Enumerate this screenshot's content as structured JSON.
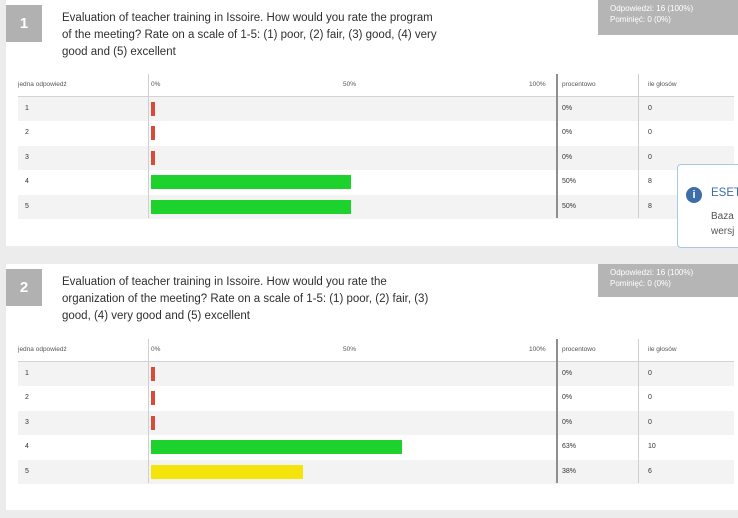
{
  "colors": {
    "red": "#d84a3a",
    "green": "#1ed22e",
    "yellow": "#f4e40c"
  },
  "questions": [
    {
      "number": "1",
      "text": "Evaluation of teacher training in Issoire. How would you rate the program of the meeting? Rate on a scale of 1-5: (1) poor, (2) fair, (3) good, (4) very good and (5) excellent",
      "stats": {
        "answers": "Odpowiedzi: 16 (100%)",
        "skipped": "Pominięć: 0 (0%)"
      },
      "headers": {
        "answer": "jedna odpowiedź",
        "p0": "0%",
        "p50": "50%",
        "p100": "100%",
        "percent": "procentowo",
        "votes": "ile głosów"
      },
      "rows": [
        {
          "label": "1",
          "fraction": 0,
          "percent": "0%",
          "votes": "0",
          "color": "red"
        },
        {
          "label": "2",
          "fraction": 0,
          "percent": "0%",
          "votes": "0",
          "color": "red"
        },
        {
          "label": "3",
          "fraction": 0,
          "percent": "0%",
          "votes": "0",
          "color": "red"
        },
        {
          "label": "4",
          "fraction": 0.5,
          "percent": "50%",
          "votes": "8",
          "color": "green"
        },
        {
          "label": "5",
          "fraction": 0.5,
          "percent": "50%",
          "votes": "8",
          "color": "green"
        }
      ]
    },
    {
      "number": "2",
      "text": "Evaluation of teacher training in Issoire. How would you rate the organization of the meeting? Rate on a scale of 1-5: (1) poor, (2) fair, (3) good, (4) very good and (5) excellent",
      "stats": {
        "answers": "Odpowiedzi: 16 (100%)",
        "skipped": "Pominięć: 0 (0%)"
      },
      "headers": {
        "answer": "jedna odpowiedź",
        "p0": "0%",
        "p50": "50%",
        "p100": "100%",
        "percent": "procentowo",
        "votes": "ile głosów"
      },
      "rows": [
        {
          "label": "1",
          "fraction": 0,
          "percent": "0%",
          "votes": "0",
          "color": "red"
        },
        {
          "label": "2",
          "fraction": 0,
          "percent": "0%",
          "votes": "0",
          "color": "red"
        },
        {
          "label": "3",
          "fraction": 0,
          "percent": "0%",
          "votes": "0",
          "color": "red"
        },
        {
          "label": "4",
          "fraction": 0.63,
          "percent": "63%",
          "votes": "10",
          "color": "green"
        },
        {
          "label": "5",
          "fraction": 0.38,
          "percent": "38%",
          "votes": "6",
          "color": "yellow"
        }
      ]
    }
  ],
  "popup": {
    "title": "ESET",
    "body": "Baza\nwersj"
  }
}
